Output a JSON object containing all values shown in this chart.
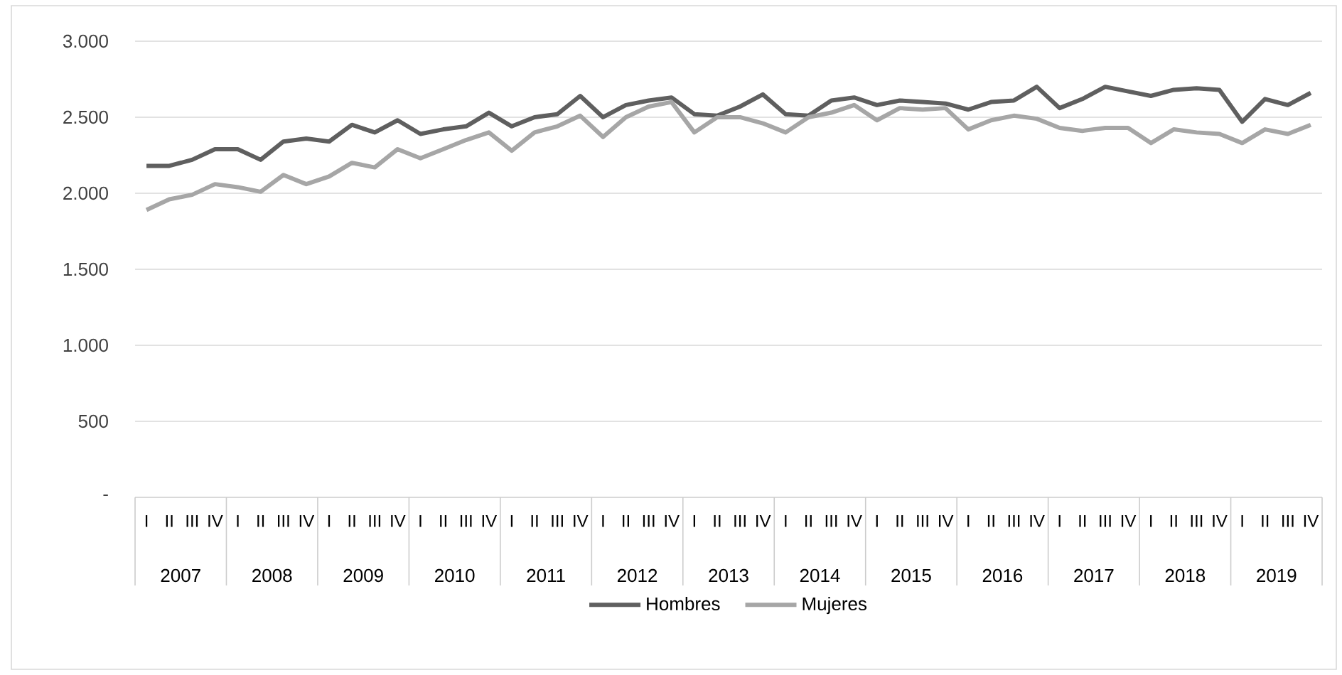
{
  "chart_data": {
    "type": "line",
    "categories": [
      "I",
      "II",
      "III",
      "IV",
      "I",
      "II",
      "III",
      "IV",
      "I",
      "II",
      "III",
      "IV",
      "I",
      "II",
      "III",
      "IV",
      "I",
      "II",
      "III",
      "IV",
      "I",
      "II",
      "III",
      "IV",
      "I",
      "II",
      "III",
      "IV",
      "I",
      "II",
      "III",
      "IV",
      "I",
      "II",
      "III",
      "IV",
      "I",
      "II",
      "III",
      "IV",
      "I",
      "II",
      "III",
      "IV",
      "I",
      "II",
      "III",
      "IV",
      "I",
      "II",
      "III",
      "IV"
    ],
    "annotations": [
      "2007",
      "2008",
      "2009",
      "2010",
      "2011",
      "2012",
      "2013",
      "2014",
      "2015",
      "2016",
      "2017",
      "2018",
      "2019"
    ],
    "series": [
      {
        "name": "Hombres",
        "color": "#5f5f5f",
        "values": [
          2180,
          2180,
          2220,
          2290,
          2290,
          2220,
          2340,
          2360,
          2340,
          2450,
          2400,
          2480,
          2390,
          2420,
          2440,
          2530,
          2440,
          2500,
          2520,
          2640,
          2500,
          2580,
          2610,
          2630,
          2520,
          2510,
          2570,
          2650,
          2520,
          2510,
          2610,
          2630,
          2580,
          2610,
          2600,
          2590,
          2550,
          2600,
          2610,
          2700,
          2560,
          2620,
          2700,
          2670,
          2640,
          2680,
          2690,
          2680,
          2470,
          2620,
          2580,
          2660
        ]
      },
      {
        "name": "Mujeres",
        "color": "#a6a6a6",
        "values": [
          1890,
          1960,
          1990,
          2060,
          2040,
          2010,
          2120,
          2060,
          2110,
          2200,
          2170,
          2290,
          2230,
          2290,
          2350,
          2400,
          2280,
          2400,
          2440,
          2510,
          2370,
          2500,
          2570,
          2600,
          2400,
          2500,
          2500,
          2460,
          2400,
          2500,
          2530,
          2580,
          2480,
          2560,
          2550,
          2560,
          2420,
          2480,
          2510,
          2490,
          2430,
          2410,
          2430,
          2430,
          2330,
          2420,
          2400,
          2390,
          2330,
          2420,
          2390,
          2450
        ]
      }
    ],
    "ylim": [
      0,
      3000
    ],
    "yticks": [
      {
        "value": 0,
        "label": "-"
      },
      {
        "value": 500,
        "label": "500"
      },
      {
        "value": 1000,
        "label": "1.000"
      },
      {
        "value": 1500,
        "label": "1.500"
      },
      {
        "value": 2000,
        "label": "2.000"
      },
      {
        "value": 2500,
        "label": "2.500"
      },
      {
        "value": 3000,
        "label": "3.000"
      }
    ],
    "grid": "y",
    "legend": "bottom"
  }
}
